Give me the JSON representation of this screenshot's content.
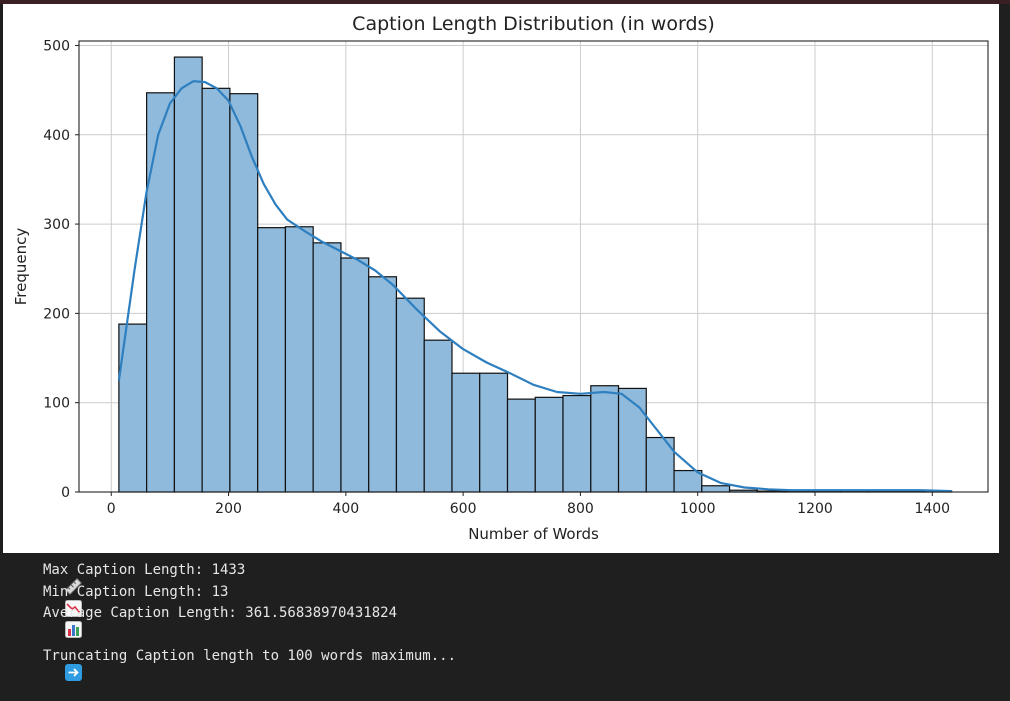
{
  "chart_data": {
    "type": "bar",
    "title": "Caption Length Distribution (in words)",
    "xlabel": "Number of Words",
    "ylabel": "Frequency",
    "xlim": [
      -55,
      1495
    ],
    "ylim": [
      0,
      505
    ],
    "xticks": [
      0,
      200,
      400,
      600,
      800,
      1000,
      1200,
      1400
    ],
    "yticks": [
      0,
      100,
      200,
      300,
      400,
      500
    ],
    "grid": true,
    "bin_edges": [
      13,
      60.3,
      107.7,
      155,
      202.3,
      249.7,
      297,
      344.3,
      391.7,
      439,
      486.3,
      533.7,
      581,
      628.3,
      675.7,
      723,
      770.3,
      817.7,
      865,
      912.3,
      959.7,
      1007,
      1054.3,
      1101.7,
      1149,
      1196.3,
      1243.7,
      1291,
      1338.3,
      1385.7,
      1433
    ],
    "values": [
      188,
      447,
      487,
      452,
      446,
      296,
      297,
      279,
      262,
      241,
      217,
      170,
      133,
      133,
      104,
      106,
      108,
      119,
      116,
      61,
      24,
      7,
      2,
      1,
      1,
      1,
      1,
      1,
      1,
      1
    ],
    "kde": {
      "x": [
        13,
        40,
        60,
        80,
        100,
        120,
        140,
        160,
        180,
        200,
        220,
        240,
        260,
        280,
        300,
        330,
        360,
        390,
        420,
        450,
        480,
        520,
        560,
        600,
        640,
        680,
        720,
        760,
        800,
        840,
        870,
        900,
        930,
        960,
        1000,
        1040,
        1080,
        1120,
        1160,
        1200,
        1260,
        1320,
        1380,
        1433
      ],
      "y": [
        125,
        250,
        335,
        400,
        435,
        452,
        460,
        459,
        452,
        438,
        410,
        375,
        345,
        322,
        305,
        292,
        280,
        270,
        260,
        248,
        232,
        205,
        180,
        160,
        145,
        133,
        120,
        112,
        110,
        112,
        110,
        95,
        70,
        45,
        22,
        10,
        5,
        3,
        2,
        2,
        2,
        2,
        2,
        1
      ]
    },
    "colors": {
      "bar_fill": "#8fbadb",
      "bar_edge": "#111111",
      "kde": "#2e7fbf",
      "grid": "#cccccc"
    }
  },
  "output": {
    "lines": [
      {
        "icon": "ruler-icon",
        "text": "Max Caption Length: 1433"
      },
      {
        "icon": "chart-decreasing-icon",
        "text": "Min Caption Length: 13"
      },
      {
        "icon": "bar-chart-icon",
        "text": "Average Caption Length: 361.56838970431824"
      },
      {
        "icon": "right-arrow-icon",
        "text": "Truncating Caption length to 100 words maximum..."
      }
    ]
  }
}
